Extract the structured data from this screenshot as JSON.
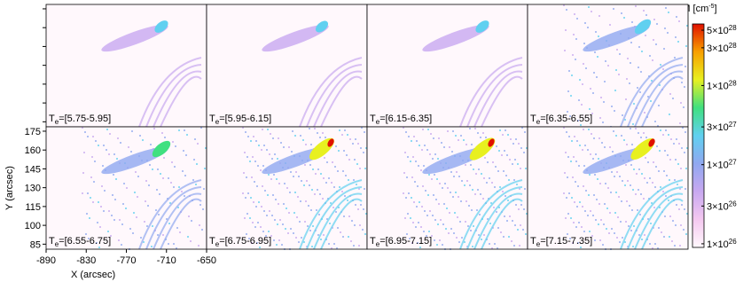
{
  "chart_data": {
    "type": "heatmap",
    "panel_label_symbol": "T",
    "panel_label_subscript": "e",
    "panels": [
      "=[5.75-5.95]",
      "=[5.95-6.15]",
      "=[6.15-6.35]",
      "=[6.35-6.55]",
      "=[6.55-6.75]",
      "=[6.75-6.95]",
      "=[6.95-7.15]",
      "=[7.15-7.35]"
    ],
    "x_label": "X (arcsec)",
    "y_label": "Y (arcsec)",
    "xlim": [
      -890,
      -650
    ],
    "xticks": [
      -890,
      -830,
      -770,
      -710,
      -650
    ],
    "ylim": [
      81,
      178.5
    ],
    "yticks": [
      85,
      100,
      115,
      130,
      145,
      160,
      175
    ],
    "colorbar_label": "EM [cm",
    "colorbar_label_exponent": "-5",
    "colorbar_label_suffix": "]",
    "log_scale": true,
    "clim": [
      9e+25,
      6e+28
    ],
    "colorbar_ticks": [
      {
        "value": 5e+28,
        "label": "5×10",
        "exponent": "28"
      },
      {
        "value": 3e+28,
        "label": "3×10",
        "exponent": "28"
      },
      {
        "value": 1e+28,
        "label": "1×10",
        "exponent": "28"
      },
      {
        "value": 3e+27,
        "label": "3×10",
        "exponent": "27"
      },
      {
        "value": 1e+27,
        "label": "1×10",
        "exponent": "27"
      },
      {
        "value": 3e+26,
        "label": "3×10",
        "exponent": "26"
      },
      {
        "value": 1e+26,
        "label": "1×10",
        "exponent": "26"
      }
    ],
    "colormap": [
      "#fff8fc",
      "#f4c8f0",
      "#c8a8f0",
      "#90a8f0",
      "#60d0f0",
      "#40e080",
      "#e8f020",
      "#f8a000",
      "#e01000"
    ]
  }
}
